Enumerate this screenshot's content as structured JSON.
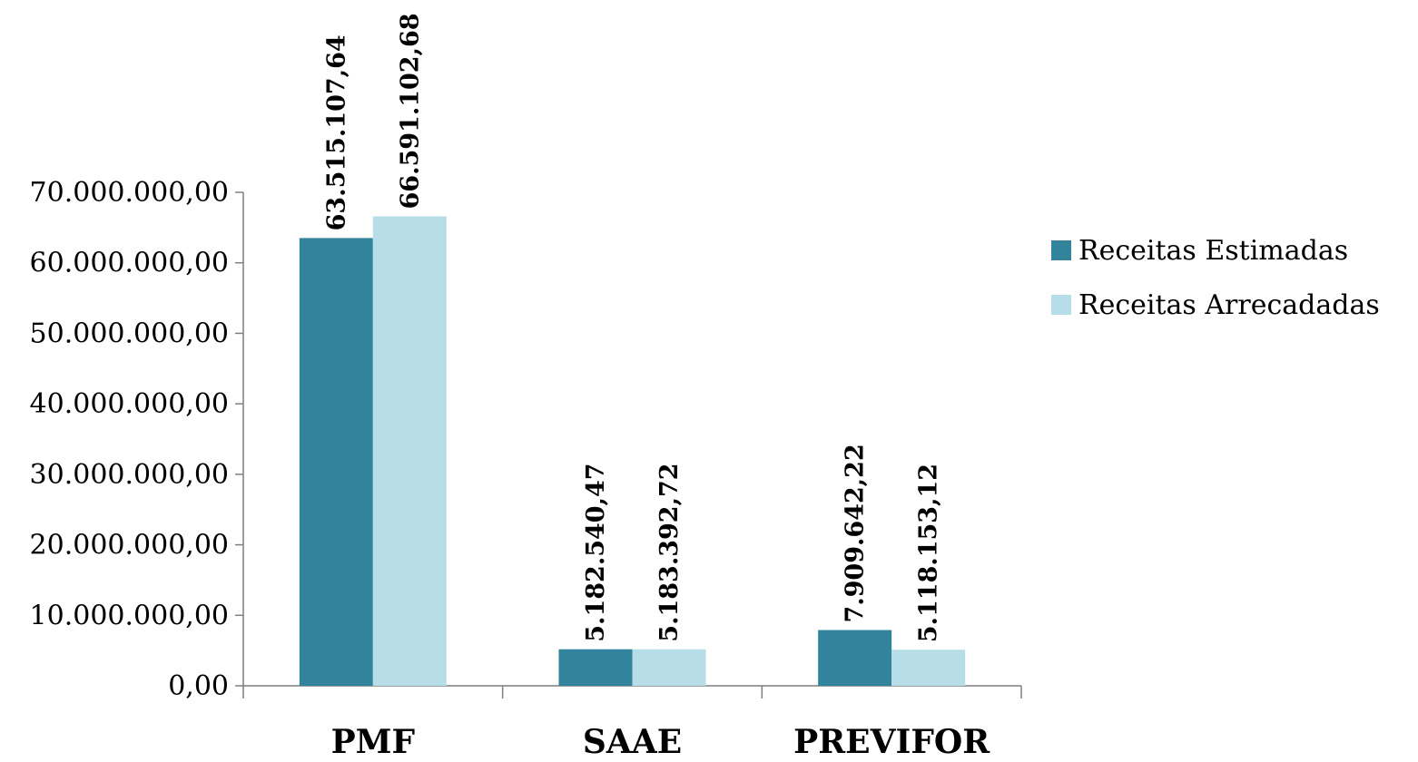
{
  "chart_data": {
    "type": "bar",
    "categories": [
      "PMF",
      "SAAE",
      "PREVIFOR"
    ],
    "series": [
      {
        "name": "Receitas Estimadas",
        "color": "#31849b",
        "values": [
          63515107.64,
          5182540.47,
          7909642.22
        ],
        "labels": [
          "63.515.107,64",
          "5.182.540,47",
          "7.909.642,22"
        ]
      },
      {
        "name": "Receitas Arrecadadas",
        "color": "#b7dde8",
        "values": [
          66591102.68,
          5183392.72,
          5118153.12
        ],
        "labels": [
          "66.591.102,68",
          "5.183.392,72",
          "5.118.153,12"
        ]
      }
    ],
    "ylim": [
      0,
      70000000
    ],
    "yticks": [
      0,
      10000000,
      20000000,
      30000000,
      40000000,
      50000000,
      60000000,
      70000000
    ],
    "ytick_labels": [
      "0,00",
      "10.000.000,00",
      "20.000.000,00",
      "30.000.000,00",
      "40.000.000,00",
      "50.000.000,00",
      "60.000.000,00",
      "70.000.000,00"
    ],
    "title": "",
    "xlabel": "",
    "ylabel": "",
    "grid": false,
    "legend_position": "right"
  }
}
